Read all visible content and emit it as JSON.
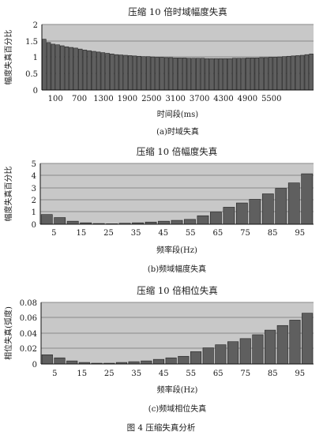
{
  "figure_caption": "图 4  压缩失真分析",
  "colors": {
    "plot_bg": "#c8c8c8",
    "bar_fill": "#5f5f5f",
    "bar_stroke": "#222222",
    "grid": "#8a8a8a"
  },
  "chart_data": [
    {
      "type": "bar",
      "title": "压缩 10 倍时域幅度失真",
      "ylabel": "幅度失真百分比",
      "xlabel": "时间段(ms)",
      "caption": "(a)时域失真",
      "ylim": [
        0,
        2
      ],
      "yticks": [
        "0",
        "0.5",
        "1",
        "1.5",
        "2"
      ],
      "xtick_labels": [
        "100",
        "700",
        "1300",
        "1900",
        "2500",
        "3100",
        "3700",
        "4300",
        "4900",
        "5500"
      ],
      "grid": true,
      "values": [
        1.55,
        1.45,
        1.4,
        1.38,
        1.35,
        1.32,
        1.3,
        1.28,
        1.25,
        1.22,
        1.2,
        1.18,
        1.16,
        1.14,
        1.12,
        1.1,
        1.08,
        1.07,
        1.06,
        1.05,
        1.04,
        1.03,
        1.02,
        1.02,
        1.01,
        1.0,
        1.0,
        0.99,
        0.99,
        0.98,
        0.98,
        0.98,
        0.97,
        0.97,
        0.97,
        0.97,
        0.96,
        0.96,
        0.96,
        0.96,
        0.96,
        0.96,
        0.97,
        0.97,
        0.97,
        0.98,
        0.98,
        0.98,
        0.99,
        0.99,
        1.0,
        1.0,
        1.01,
        1.02,
        1.03,
        1.04,
        1.05,
        1.06,
        1.08,
        1.1
      ]
    },
    {
      "type": "bar",
      "title": "压缩 10 倍幅度失真",
      "ylabel": "幅度失真百分比",
      "xlabel": "频率段(Hz)",
      "caption": "(b)频域幅度失真",
      "ylim": [
        0,
        5
      ],
      "yticks": [
        "0",
        "1",
        "2",
        "3",
        "4",
        "5"
      ],
      "xtick_labels": [
        "5",
        "15",
        "25",
        "35",
        "45",
        "55",
        "65",
        "75",
        "85",
        "95"
      ],
      "grid": true,
      "values": [
        0.8,
        0.55,
        0.25,
        0.12,
        0.06,
        0.04,
        0.08,
        0.12,
        0.18,
        0.25,
        0.32,
        0.4,
        0.7,
        1.0,
        1.4,
        1.75,
        2.05,
        2.5,
        2.95,
        3.4,
        4.15
      ]
    },
    {
      "type": "bar",
      "title": "压缩 10 倍相位失真",
      "ylabel": "相位失真(弧度)",
      "xlabel": "频率段(Hz)",
      "caption": "(c)频域相位失真",
      "ylim": [
        0,
        0.08
      ],
      "yticks": [
        "0",
        "0.02",
        "0.04",
        "0.06",
        "0.08"
      ],
      "xtick_labels": [
        "5",
        "15",
        "25",
        "35",
        "45",
        "55",
        "65",
        "75",
        "85",
        "95"
      ],
      "grid": true,
      "values": [
        0.012,
        0.008,
        0.004,
        0.002,
        0.001,
        0.001,
        0.002,
        0.003,
        0.004,
        0.006,
        0.008,
        0.01,
        0.016,
        0.021,
        0.025,
        0.029,
        0.033,
        0.038,
        0.044,
        0.05,
        0.057,
        0.066
      ]
    }
  ]
}
